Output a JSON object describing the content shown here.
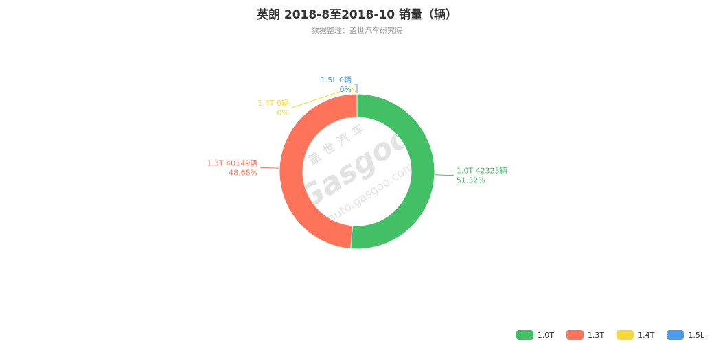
{
  "header": {
    "title": "英朗 2018-8至2018-10 销量（辆）",
    "subtitle": "数据整理：盖世汽车研究院"
  },
  "watermark": {
    "brand_cn": "盖世汽车",
    "brand_en": "Gasgoo",
    "url": "auto.gasgoo.com"
  },
  "chart_data": {
    "type": "pie",
    "variant": "donut",
    "unit": "辆",
    "legend_position": "bottom-right",
    "categories": [
      "1.0T",
      "1.3T",
      "1.4T",
      "1.5L"
    ],
    "values": [
      42323,
      40149,
      0,
      0
    ],
    "percents": [
      "51.32%",
      "48.68%",
      "0%",
      "0%"
    ],
    "labels": [
      "1.0T 42323辆",
      "1.3T 40149辆",
      "1.4T 0辆",
      "1.5L 0辆"
    ],
    "colors": [
      "#43bf66",
      "#fd745b",
      "#f5d93a",
      "#4a9ded"
    ]
  }
}
